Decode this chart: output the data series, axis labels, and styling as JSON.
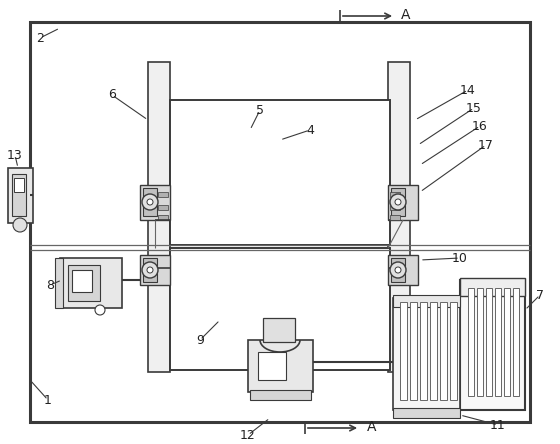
{
  "background_color": "#ffffff",
  "line_color": "#3a3a3a",
  "thin_color": "#666666",
  "figsize": [
    5.6,
    4.44
  ],
  "dpi": 100
}
